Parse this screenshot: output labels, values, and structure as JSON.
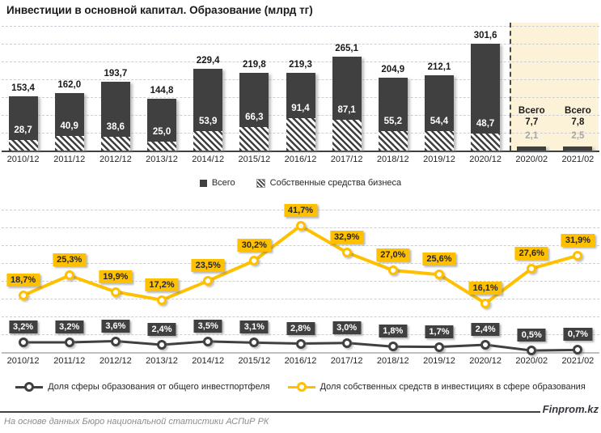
{
  "title": "Инвестиции в основной капитал. Образование (млрд тг)",
  "colors": {
    "dark": "#404040",
    "yellow": "#FFC000",
    "highlight_bg": "#FCF2D8",
    "grid": "#CDCDD8",
    "muted_value": "#A6A6A6",
    "baseline_light": "#BFBFBF",
    "source_text": "#8C8C8C"
  },
  "categories": [
    "2010/12",
    "2011/12",
    "2012/12",
    "2013/12",
    "2014/12",
    "2015/12",
    "2016/12",
    "2017/12",
    "2018/12",
    "2019/12",
    "2020/12",
    "2020/02",
    "2021/02"
  ],
  "chart_data": [
    {
      "type": "bar",
      "title": "Инвестиции в основной капитал. Образование (млрд тг)",
      "categories": [
        "2010/12",
        "2011/12",
        "2012/12",
        "2013/12",
        "2014/12",
        "2015/12",
        "2016/12",
        "2017/12",
        "2018/12",
        "2019/12",
        "2020/12",
        "2020/02",
        "2021/02"
      ],
      "series": [
        {
          "name": "Всего",
          "values": [
            153.4,
            162.0,
            193.7,
            144.8,
            229.4,
            219.8,
            219.3,
            265.1,
            204.9,
            212.1,
            301.6,
            7.7,
            7.8
          ]
        },
        {
          "name": "Собственные средства бизнеса",
          "values": [
            28.7,
            40.9,
            38.6,
            25.0,
            53.9,
            66.3,
            91.4,
            87.1,
            55.2,
            54.4,
            48.7,
            2.1,
            2.5
          ]
        }
      ],
      "highlight_categories": [
        "2020/02",
        "2021/02"
      ],
      "highlight_total_prefix": "Всего",
      "ylabel": "млрд тг",
      "ylim": [
        0,
        360
      ],
      "grid": true,
      "legend_position": "bottom"
    },
    {
      "type": "line",
      "categories": [
        "2010/12",
        "2011/12",
        "2012/12",
        "2013/12",
        "2014/12",
        "2015/12",
        "2016/12",
        "2017/12",
        "2018/12",
        "2019/12",
        "2020/12",
        "2020/02",
        "2021/02"
      ],
      "series": [
        {
          "name": "Доля сферы образования от общего инвестпортфеля",
          "color": "#404040",
          "values": [
            3.2,
            3.2,
            3.6,
            2.4,
            3.5,
            3.1,
            2.8,
            3.0,
            1.8,
            1.7,
            2.4,
            0.5,
            0.7
          ]
        },
        {
          "name": "Доля собственных средств в инвестициях в сфере образования",
          "color": "#FFC000",
          "values": [
            18.7,
            25.3,
            19.9,
            17.2,
            23.5,
            30.2,
            41.7,
            32.9,
            27.0,
            25.6,
            16.1,
            27.6,
            31.9
          ]
        }
      ],
      "unit": "%",
      "ylim": [
        0,
        50
      ],
      "grid": true,
      "legend_position": "bottom"
    }
  ],
  "footer": {
    "source": "На основе данных Бюро национальной статистики АСПиР РК",
    "brand": "Finprom.kz"
  }
}
